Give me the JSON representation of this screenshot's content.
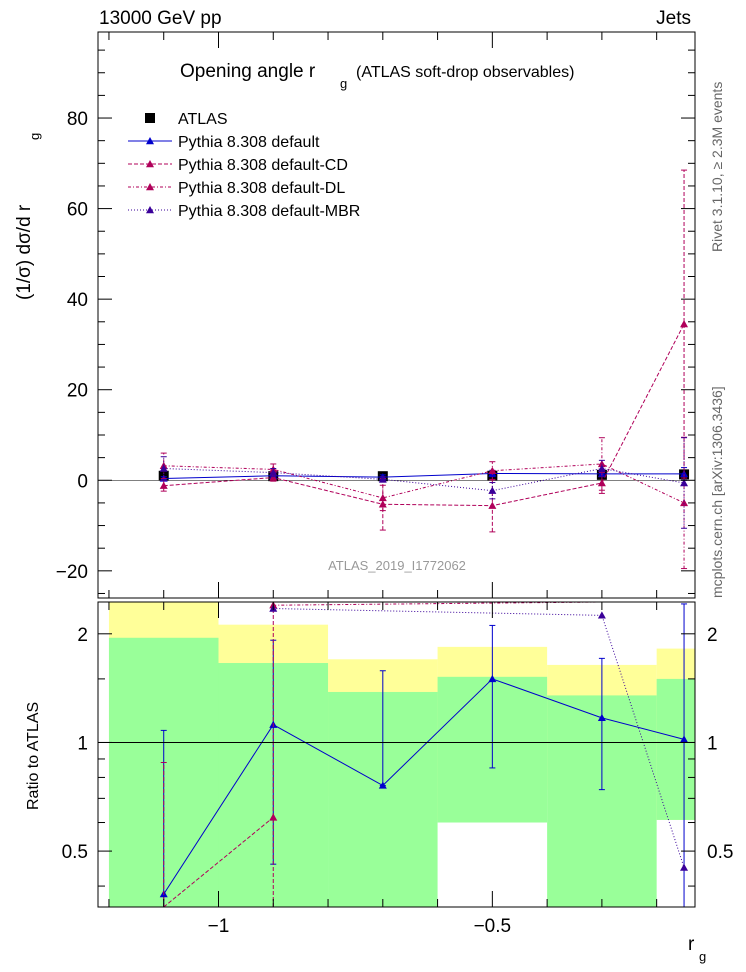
{
  "header": {
    "energy_label": "13000 GeV pp",
    "process_label": "Jets",
    "title_main": "Opening angle r",
    "title_sub": "g",
    "title_tail": "(ATLAS soft-drop observables)",
    "analysis_id": "ATLAS_2019_I1772062",
    "side_label_rivet": "Rivet 3.1.10, ≥ 2.3M events",
    "side_label_mcplots": "mcplots.cern.ch [arXiv:1306.3436]"
  },
  "axes": {
    "ylabel_main": "(1/σ) dσ/d r",
    "ylabel_main_sub": "g",
    "ylabel_ratio": "Ratio to ATLAS",
    "xlabel": "r",
    "xlabel_sub": "g",
    "main_yticks": [
      "−20",
      "0",
      "20",
      "40",
      "60",
      "80"
    ],
    "ratio_yticks": [
      "0.5",
      "1",
      "2"
    ],
    "xticks": [
      "−1",
      "−0.5"
    ]
  },
  "colors": {
    "atlas": "#000000",
    "default": "#0000cc",
    "cd": "#b0005a",
    "dl": "#b0005a",
    "mbr": "#3a0099",
    "band_inner": "#99ff99",
    "band_outer": "#ffff99"
  },
  "chart_data": {
    "type": "scatter",
    "x_scale": "log10",
    "xlim": [
      -1.22,
      -0.13
    ],
    "main_ylim": [
      -26,
      99
    ],
    "ratio_ylim": [
      0.35,
      2.45
    ],
    "ratio_scale": "log",
    "bins": [
      {
        "lo": -1.2,
        "hi": -1.0
      },
      {
        "lo": -1.0,
        "hi": -0.8
      },
      {
        "lo": -0.8,
        "hi": -0.6
      },
      {
        "lo": -0.6,
        "hi": -0.4
      },
      {
        "lo": -0.4,
        "hi": -0.2
      },
      {
        "lo": -0.2,
        "hi": -0.13
      }
    ],
    "series": [
      {
        "name": "ATLAS",
        "key": "atlas",
        "x": [
          -1.1,
          -0.9,
          -0.7,
          -0.5,
          -0.3,
          -0.15
        ],
        "y": [
          1.0,
          0.9,
          0.9,
          1.0,
          1.2,
          1.3
        ],
        "err": [
          0.8,
          0.6,
          0.4,
          0.6,
          0.6,
          0.7
        ]
      },
      {
        "name": "Pythia 8.308 default",
        "key": "default",
        "x": [
          -1.1,
          -0.9,
          -0.7,
          -0.5,
          -0.3,
          -0.15
        ],
        "y": [
          0.4,
          1.0,
          0.7,
          1.5,
          1.4,
          1.4
        ],
        "err": [
          0.4,
          0.6,
          0.5,
          0.7,
          0.4,
          1.4
        ]
      },
      {
        "name": "Pythia 8.308 default-CD",
        "key": "cd",
        "x": [
          -1.1,
          -0.9,
          -0.7,
          -0.5,
          -0.3,
          -0.15
        ],
        "y": [
          -1.2,
          0.6,
          -5.3,
          -5.6,
          -0.6,
          34.5
        ],
        "err": [
          1.2,
          0.8,
          5.7,
          5.8,
          2.3,
          34.0
        ]
      },
      {
        "name": "Pythia 8.308 default-DL",
        "key": "dl",
        "x": [
          -1.1,
          -0.9,
          -0.7,
          -0.5,
          -0.3,
          -0.15
        ],
        "y": [
          3.2,
          2.4,
          -3.9,
          2.1,
          3.6,
          -5.0
        ],
        "err": [
          2.8,
          1.2,
          2.8,
          2.0,
          5.8,
          14.5
        ]
      },
      {
        "name": "Pythia 8.308 default-MBR",
        "key": "mbr",
        "x": [
          -1.1,
          -0.9,
          -0.7,
          -0.5,
          -0.3,
          -0.15
        ],
        "y": [
          2.6,
          1.7,
          0.2,
          -2.3,
          2.6,
          -0.6
        ],
        "err": [
          2.6,
          0.9,
          0.6,
          1.8,
          1.8,
          10.0
        ]
      }
    ],
    "ratio_series": [
      {
        "key": "default",
        "x": [
          -1.1,
          -0.9,
          -0.7,
          -0.5,
          -0.3,
          -0.15
        ],
        "y": [
          0.38,
          1.12,
          0.76,
          1.5,
          1.17,
          1.02
        ],
        "err_lo": [
          0.34,
          0.66,
          0.0,
          0.65,
          0.43,
          0.7
        ],
        "err_hi": [
          0.7,
          0.8,
          0.82,
          0.61,
          0.54,
          1.4
        ]
      },
      {
        "key": "cd",
        "x": [
          -1.1,
          -0.9
        ],
        "y": [
          0.3,
          0.62
        ],
        "err_lo": [
          0.0,
          0.27
        ],
        "err_hi": [
          0.58,
          1.92
        ]
      },
      {
        "key": "dl",
        "x": [
          -0.9,
          -0.3
        ],
        "y": [
          2.4,
          2.6
        ],
        "err_lo": [
          0.0,
          0.0
        ],
        "err_hi": [
          0.0,
          0.0
        ]
      },
      {
        "key": "mbr",
        "x": [
          -0.9,
          -0.3,
          -0.15
        ],
        "y": [
          2.35,
          2.25,
          0.45
        ],
        "err_lo": [
          0.0,
          0.0,
          0.0
        ],
        "err_hi": [
          0.0,
          0.0,
          0.0
        ]
      }
    ],
    "bands": {
      "inner": [
        [
          -1.2,
          -1.0,
          0.34,
          1.95
        ],
        [
          -1.0,
          -0.8,
          0.34,
          1.66
        ],
        [
          -0.8,
          -0.6,
          0.34,
          1.38
        ],
        [
          -0.6,
          -0.4,
          0.6,
          1.52
        ],
        [
          -0.4,
          -0.2,
          0.34,
          1.35
        ],
        [
          -0.2,
          -0.13,
          0.61,
          1.5
        ]
      ],
      "outer": [
        [
          -1.2,
          -1.0,
          0.34,
          2.5
        ],
        [
          -1.0,
          -0.8,
          0.34,
          2.12
        ],
        [
          -0.8,
          -0.6,
          0.71,
          1.7
        ],
        [
          -0.6,
          -0.4,
          0.61,
          1.84
        ],
        [
          -0.4,
          -0.2,
          0.74,
          1.64
        ],
        [
          -0.2,
          -0.13,
          0.61,
          1.82
        ]
      ]
    },
    "legend_position": "top-left",
    "grid": false
  }
}
